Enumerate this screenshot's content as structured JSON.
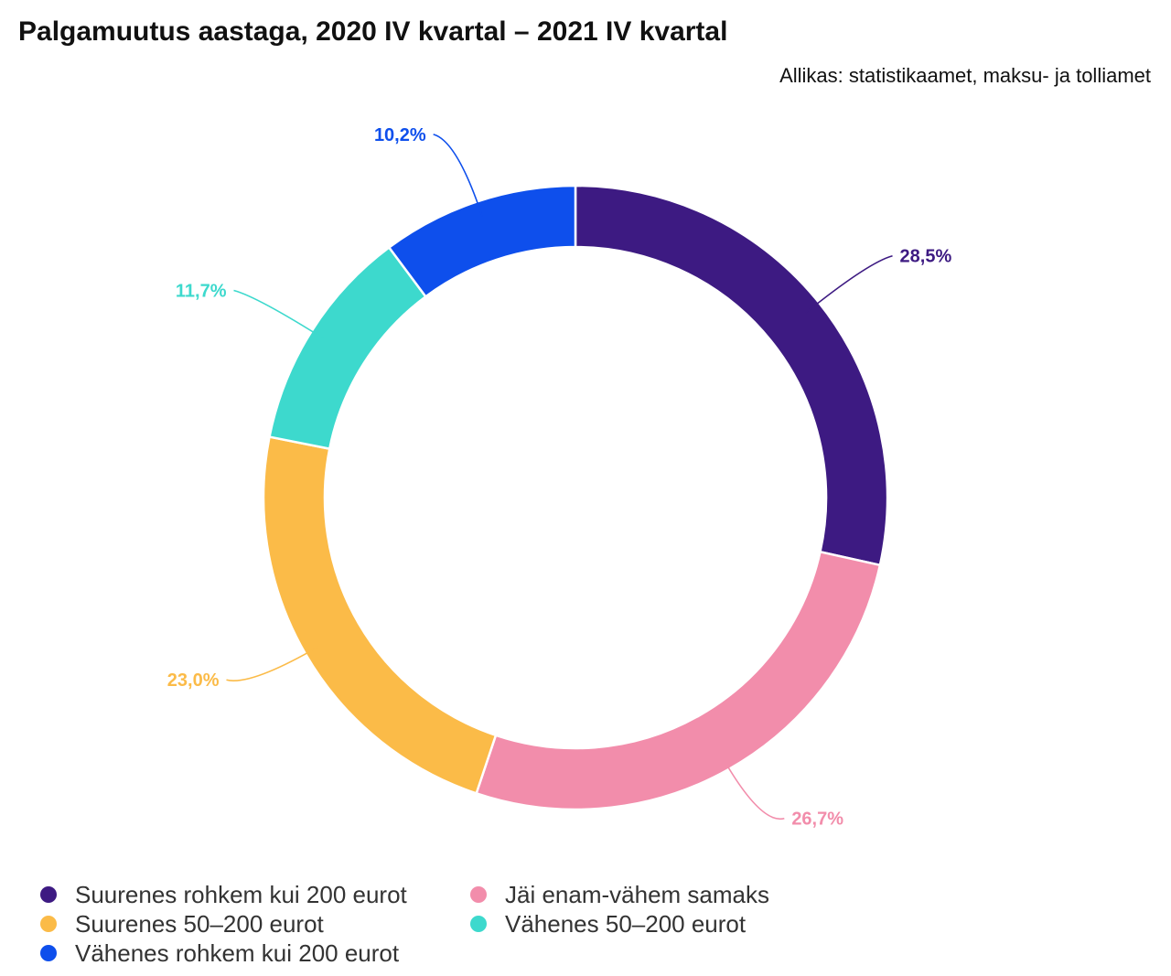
{
  "header": {
    "title": "Palgamuutus aastaga, 2020 IV kvartal – 2021 IV kvartal",
    "source": "Allikas: statistikaamet, maksu- ja tolliamet"
  },
  "chart_data": {
    "type": "pie",
    "donut": true,
    "title": "Palgamuutus aastaga, 2020 IV kvartal – 2021 IV kvartal",
    "legend_position": "bottom-left",
    "slices": [
      {
        "name": "Suurenes rohkem kui 200 eurot",
        "value": 28.5,
        "label": "28,5%",
        "color": "#3d1a82"
      },
      {
        "name": "Jäi enam-vähem samaks",
        "value": 26.7,
        "label": "26,7%",
        "color": "#f28dab"
      },
      {
        "name": "Suurenes 50–200 eurot",
        "value": 23.0,
        "label": "23,0%",
        "color": "#fbbb48"
      },
      {
        "name": "Vähenes 50–200 eurot",
        "value": 11.7,
        "label": "11,7%",
        "color": "#3dd9cd"
      },
      {
        "name": "Vähenes rohkem kui 200 eurot",
        "value": 10.2,
        "label": "10,2%",
        "color": "#0e4fec"
      }
    ],
    "legend_order": [
      "Suurenes rohkem kui 200 eurot",
      "Jäi enam-vähem samaks",
      "Suurenes 50–200 eurot",
      "Vähenes 50–200 eurot",
      "Vähenes rohkem kui 200 eurot"
    ]
  }
}
